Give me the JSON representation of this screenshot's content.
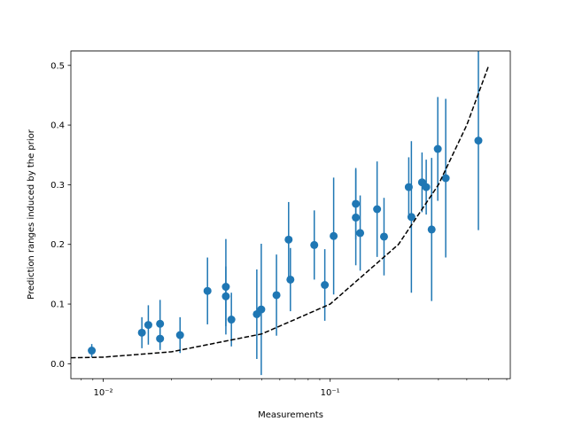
{
  "chart_data": {
    "type": "errorbar",
    "xlabel": "Measurements",
    "ylabel": "Prediction ranges induced by the prior",
    "xscale": "log",
    "xlim": [
      0.0072,
      0.622
    ],
    "ylim": [
      -0.025,
      0.524
    ],
    "xticks": [
      {
        "value": 0.01,
        "label": "10⁻²"
      },
      {
        "value": 0.1,
        "label": "10⁻¹"
      }
    ],
    "xminorticks": [
      0.008,
      0.009,
      0.02,
      0.03,
      0.04,
      0.05,
      0.06,
      0.07,
      0.08,
      0.09,
      0.2,
      0.3,
      0.4,
      0.5,
      0.6
    ],
    "yticks": [
      {
        "value": 0,
        "label": "0.0"
      },
      0.1,
      0.2,
      0.3,
      0.4,
      0.5
    ],
    "series": [
      {
        "color": "#1f77b4",
        "x": [
          0.0089,
          0.0148,
          0.0158,
          0.0178,
          0.0178,
          0.0218,
          0.0288,
          0.0347,
          0.0347,
          0.0367,
          0.0475,
          0.0497,
          0.058,
          0.0656,
          0.0668,
          0.0851,
          0.0947,
          0.1036,
          0.1297,
          0.1297,
          0.1356,
          0.161,
          0.1727,
          0.222,
          0.228,
          0.254,
          0.265,
          0.28,
          0.298,
          0.323,
          0.45
        ],
        "values": [
          0.022,
          0.052,
          0.065,
          0.067,
          0.042,
          0.048,
          0.122,
          0.129,
          0.113,
          0.074,
          0.083,
          0.091,
          0.115,
          0.208,
          0.141,
          0.199,
          0.132,
          0.214,
          0.268,
          0.245,
          0.219,
          0.259,
          0.213,
          0.296,
          0.246,
          0.304,
          0.296,
          0.225,
          0.36,
          0.311,
          0.374
        ],
        "errors": [
          0.011,
          0.026,
          0.033,
          0.04,
          0.019,
          0.03,
          0.056,
          0.08,
          0.05,
          0.045,
          0.075,
          0.11,
          0.068,
          0.063,
          0.053,
          0.058,
          0.06,
          0.098,
          0.06,
          0.08,
          0.063,
          0.08,
          0.065,
          0.05,
          0.127,
          0.05,
          0.046,
          0.12,
          0.087,
          0.133,
          0.15
        ]
      },
      {
        "color": "#000000",
        "style": "dashed",
        "x": [
          0.0072,
          0.01,
          0.02,
          0.05,
          0.1,
          0.2,
          0.3,
          0.4,
          0.5
        ],
        "values": [
          0.01,
          0.011,
          0.02,
          0.05,
          0.1,
          0.2,
          0.3,
          0.4,
          0.5
        ]
      }
    ]
  }
}
